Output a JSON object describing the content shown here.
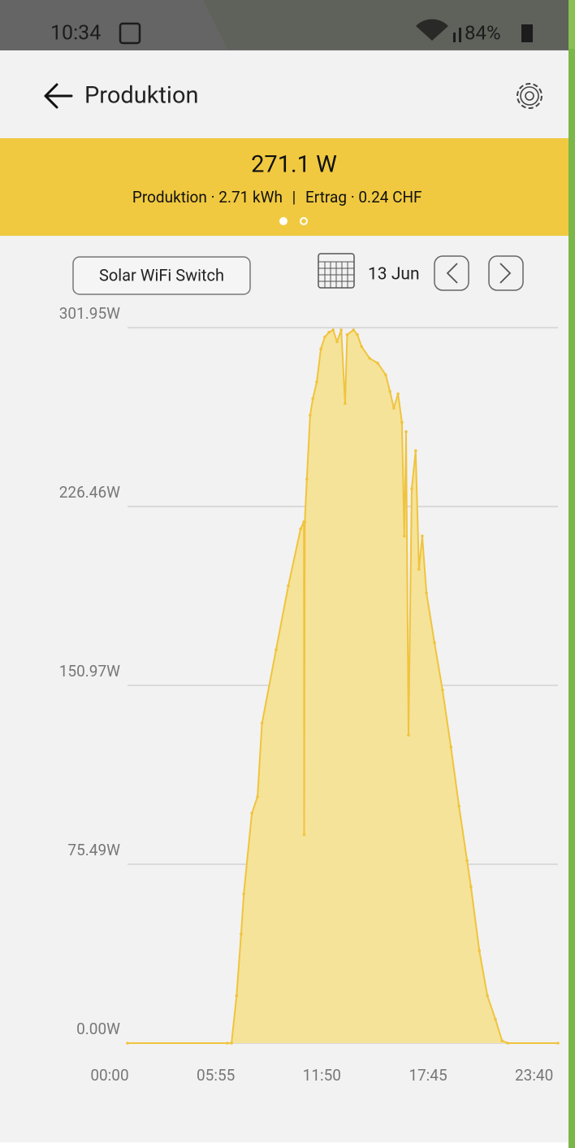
{
  "status_bar": {
    "time": "10:34",
    "battery": "84%"
  },
  "header": {
    "title": "Produktion"
  },
  "banner": {
    "power": "271.1 W",
    "production": "Produktion · 2.71 kWh",
    "revenue": "Ertrag · 0.24 CHF"
  },
  "controls": {
    "device": "Solar WiFi Switch",
    "date": "13 Jun"
  },
  "chart_data": {
    "type": "area",
    "color": "#efc43e",
    "fill": "#f6e39a",
    "grid": true,
    "x": [
      0,
      334,
      348,
      365,
      380,
      389,
      416,
      435,
      450,
      497,
      538,
      579,
      590,
      591,
      593,
      600,
      611,
      620,
      633,
      647,
      660,
      674,
      688,
      701,
      715,
      728,
      735,
      756,
      769,
      783,
      810,
      837,
      864,
      878,
      891,
      905,
      918,
      926,
      932,
      940,
      951,
      964,
      975,
      986,
      1000,
      1027,
      1054,
      1082,
      1109,
      1136,
      1149,
      1177,
      1204,
      1231,
      1253,
      1272,
      1440
    ],
    "values": [
      0,
      0,
      0,
      20,
      46,
      63,
      97,
      104,
      135,
      166,
      193,
      217,
      220,
      88,
      220,
      238,
      265,
      272,
      279,
      293,
      298,
      300,
      301,
      296,
      301,
      270,
      299,
      301,
      299,
      294,
      289,
      287,
      282,
      275,
      268,
      274,
      262,
      214,
      258,
      130,
      234,
      250,
      200,
      214,
      190,
      169,
      149,
      125,
      100,
      77,
      66,
      39,
      20,
      10,
      1,
      0,
      0
    ],
    "xlim": [
      0,
      1440
    ],
    "xticks": [
      {
        "value": 0,
        "label": "00:00"
      },
      {
        "value": 355,
        "label": "05:55"
      },
      {
        "value": 710,
        "label": "11:50"
      },
      {
        "value": 1065,
        "label": "17:45"
      },
      {
        "value": 1420,
        "label": "23:40"
      }
    ],
    "ylim": [
      0,
      301.95
    ],
    "yticks": [
      {
        "value": 0,
        "label": "0.00W"
      },
      {
        "value": 75.49,
        "label": "75.49W"
      },
      {
        "value": 150.97,
        "label": "150.97W"
      },
      {
        "value": 226.46,
        "label": "226.46W"
      },
      {
        "value": 301.95,
        "label": "301.95W"
      }
    ]
  }
}
